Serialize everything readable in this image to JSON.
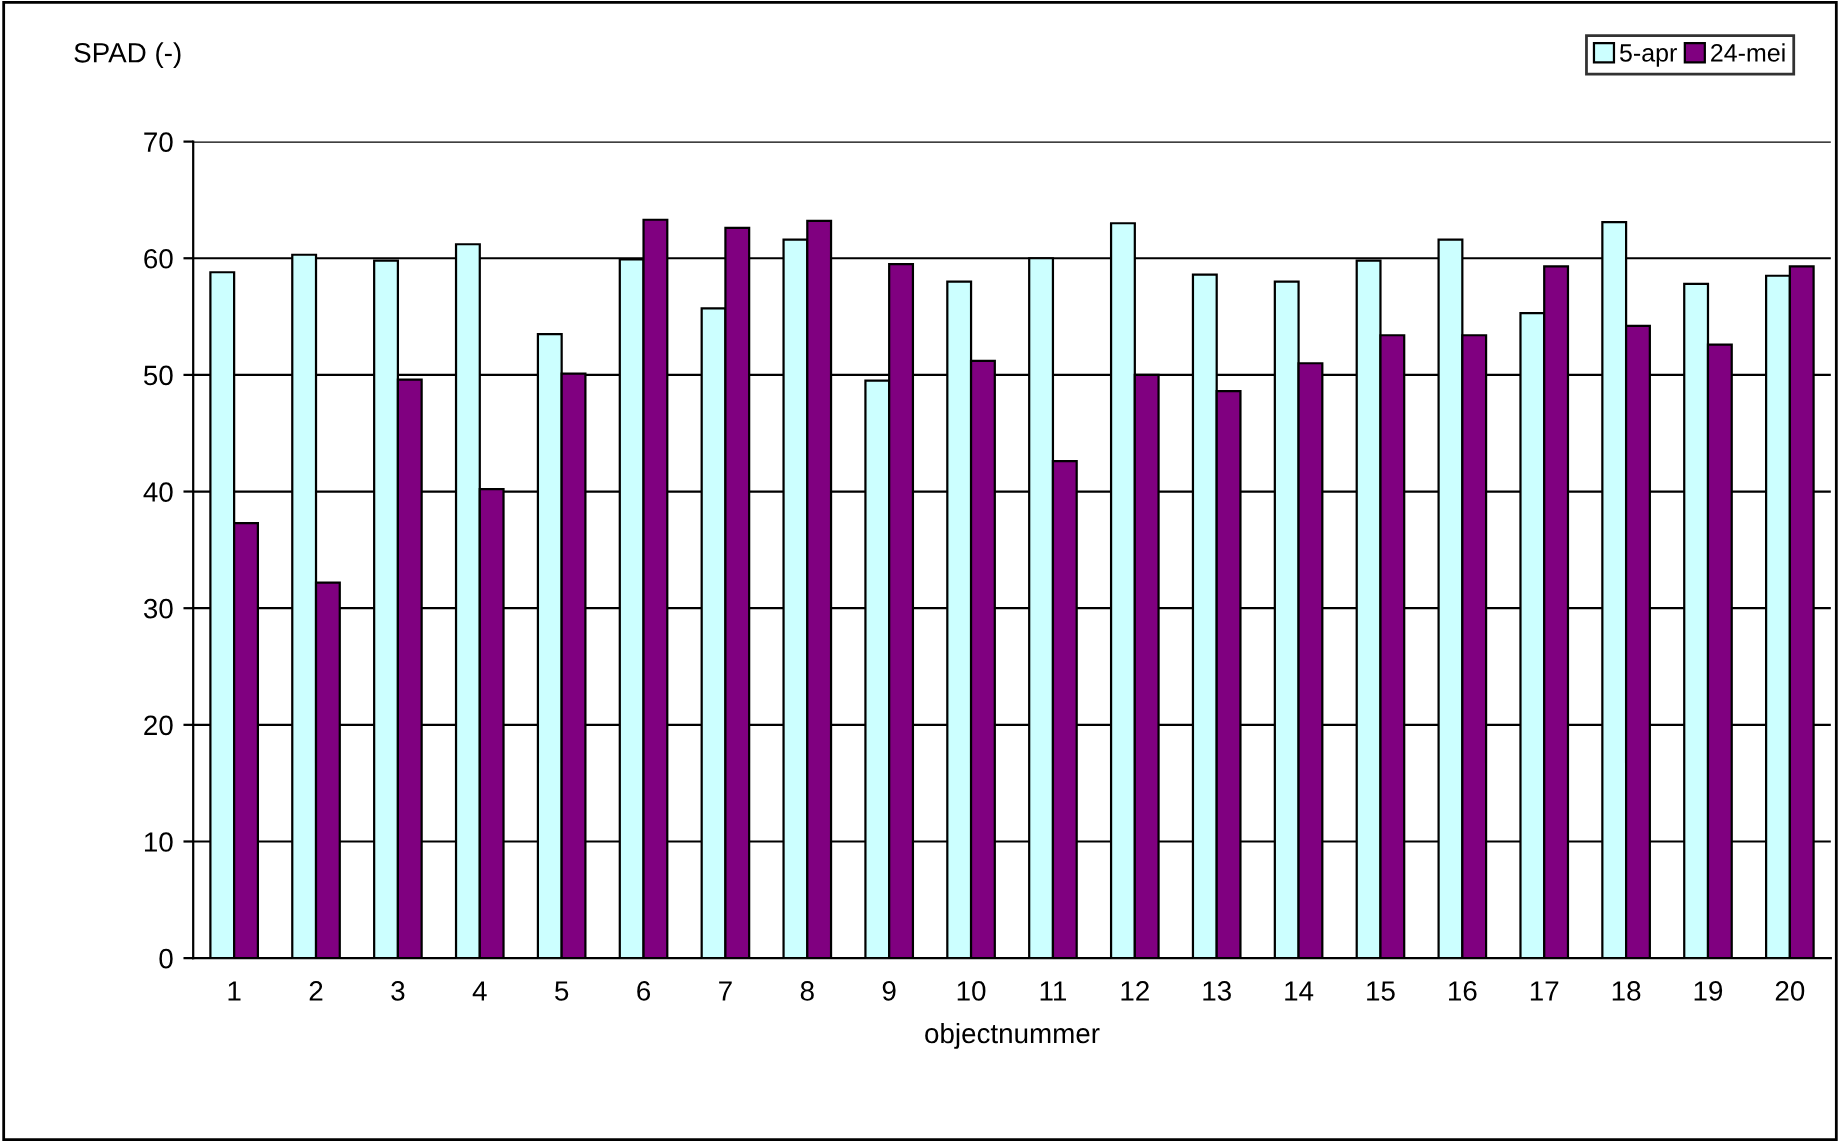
{
  "chart_data": {
    "type": "bar",
    "ylabel": "SPAD (-)",
    "xlabel": "objectnummer",
    "categories": [
      "1",
      "2",
      "3",
      "4",
      "5",
      "6",
      "7",
      "8",
      "9",
      "10",
      "11",
      "12",
      "13",
      "14",
      "15",
      "16",
      "17",
      "18",
      "19",
      "20"
    ],
    "series": [
      {
        "name": "5-apr",
        "color": "#ccffff",
        "values": [
          58.8,
          60.3,
          59.8,
          61.2,
          53.5,
          59.9,
          55.7,
          61.6,
          49.5,
          58.0,
          60.0,
          63.0,
          58.6,
          58.0,
          59.8,
          61.6,
          55.3,
          63.1,
          57.8,
          58.5
        ]
      },
      {
        "name": "24-mei",
        "color": "#800080",
        "values": [
          37.3,
          32.2,
          49.6,
          40.2,
          50.1,
          63.3,
          62.6,
          63.2,
          59.5,
          51.2,
          42.6,
          50.0,
          48.6,
          51.0,
          53.4,
          53.4,
          59.3,
          54.2,
          52.6,
          59.3
        ]
      }
    ],
    "ylim": [
      0,
      70
    ],
    "yticks": [
      0,
      10,
      20,
      30,
      40,
      50,
      60,
      70
    ],
    "grid": "y",
    "legend": "top right"
  }
}
